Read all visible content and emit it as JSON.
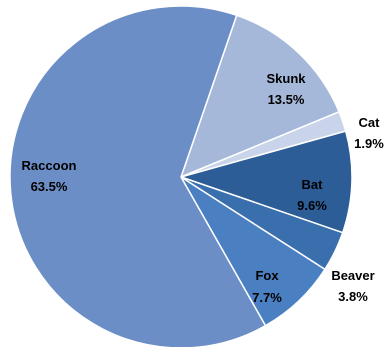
{
  "chart_data": {
    "type": "pie",
    "title": "",
    "start_angle_deg": -71,
    "slices": [
      {
        "name": "Skunk",
        "label": "Skunk",
        "value_label": "13.5%",
        "value": 13.5,
        "color": "#A6B8D9"
      },
      {
        "name": "Cat",
        "label": "Cat",
        "value_label": "1.9%",
        "value": 1.9,
        "color": "#C9D4EA"
      },
      {
        "name": "Bat",
        "label": "Bat",
        "value_label": "9.6%",
        "value": 9.6,
        "color": "#2D5D97"
      },
      {
        "name": "Beaver",
        "label": "Beaver",
        "value_label": "3.8%",
        "value": 3.8,
        "color": "#3A6FAD"
      },
      {
        "name": "Fox",
        "label": "Fox",
        "value_label": "7.7%",
        "value": 7.7,
        "color": "#4A80C2"
      },
      {
        "name": "Raccoon",
        "label": "Raccoon",
        "value_label": "63.5%",
        "value": 63.5,
        "color": "#6C8EC7"
      }
    ]
  }
}
